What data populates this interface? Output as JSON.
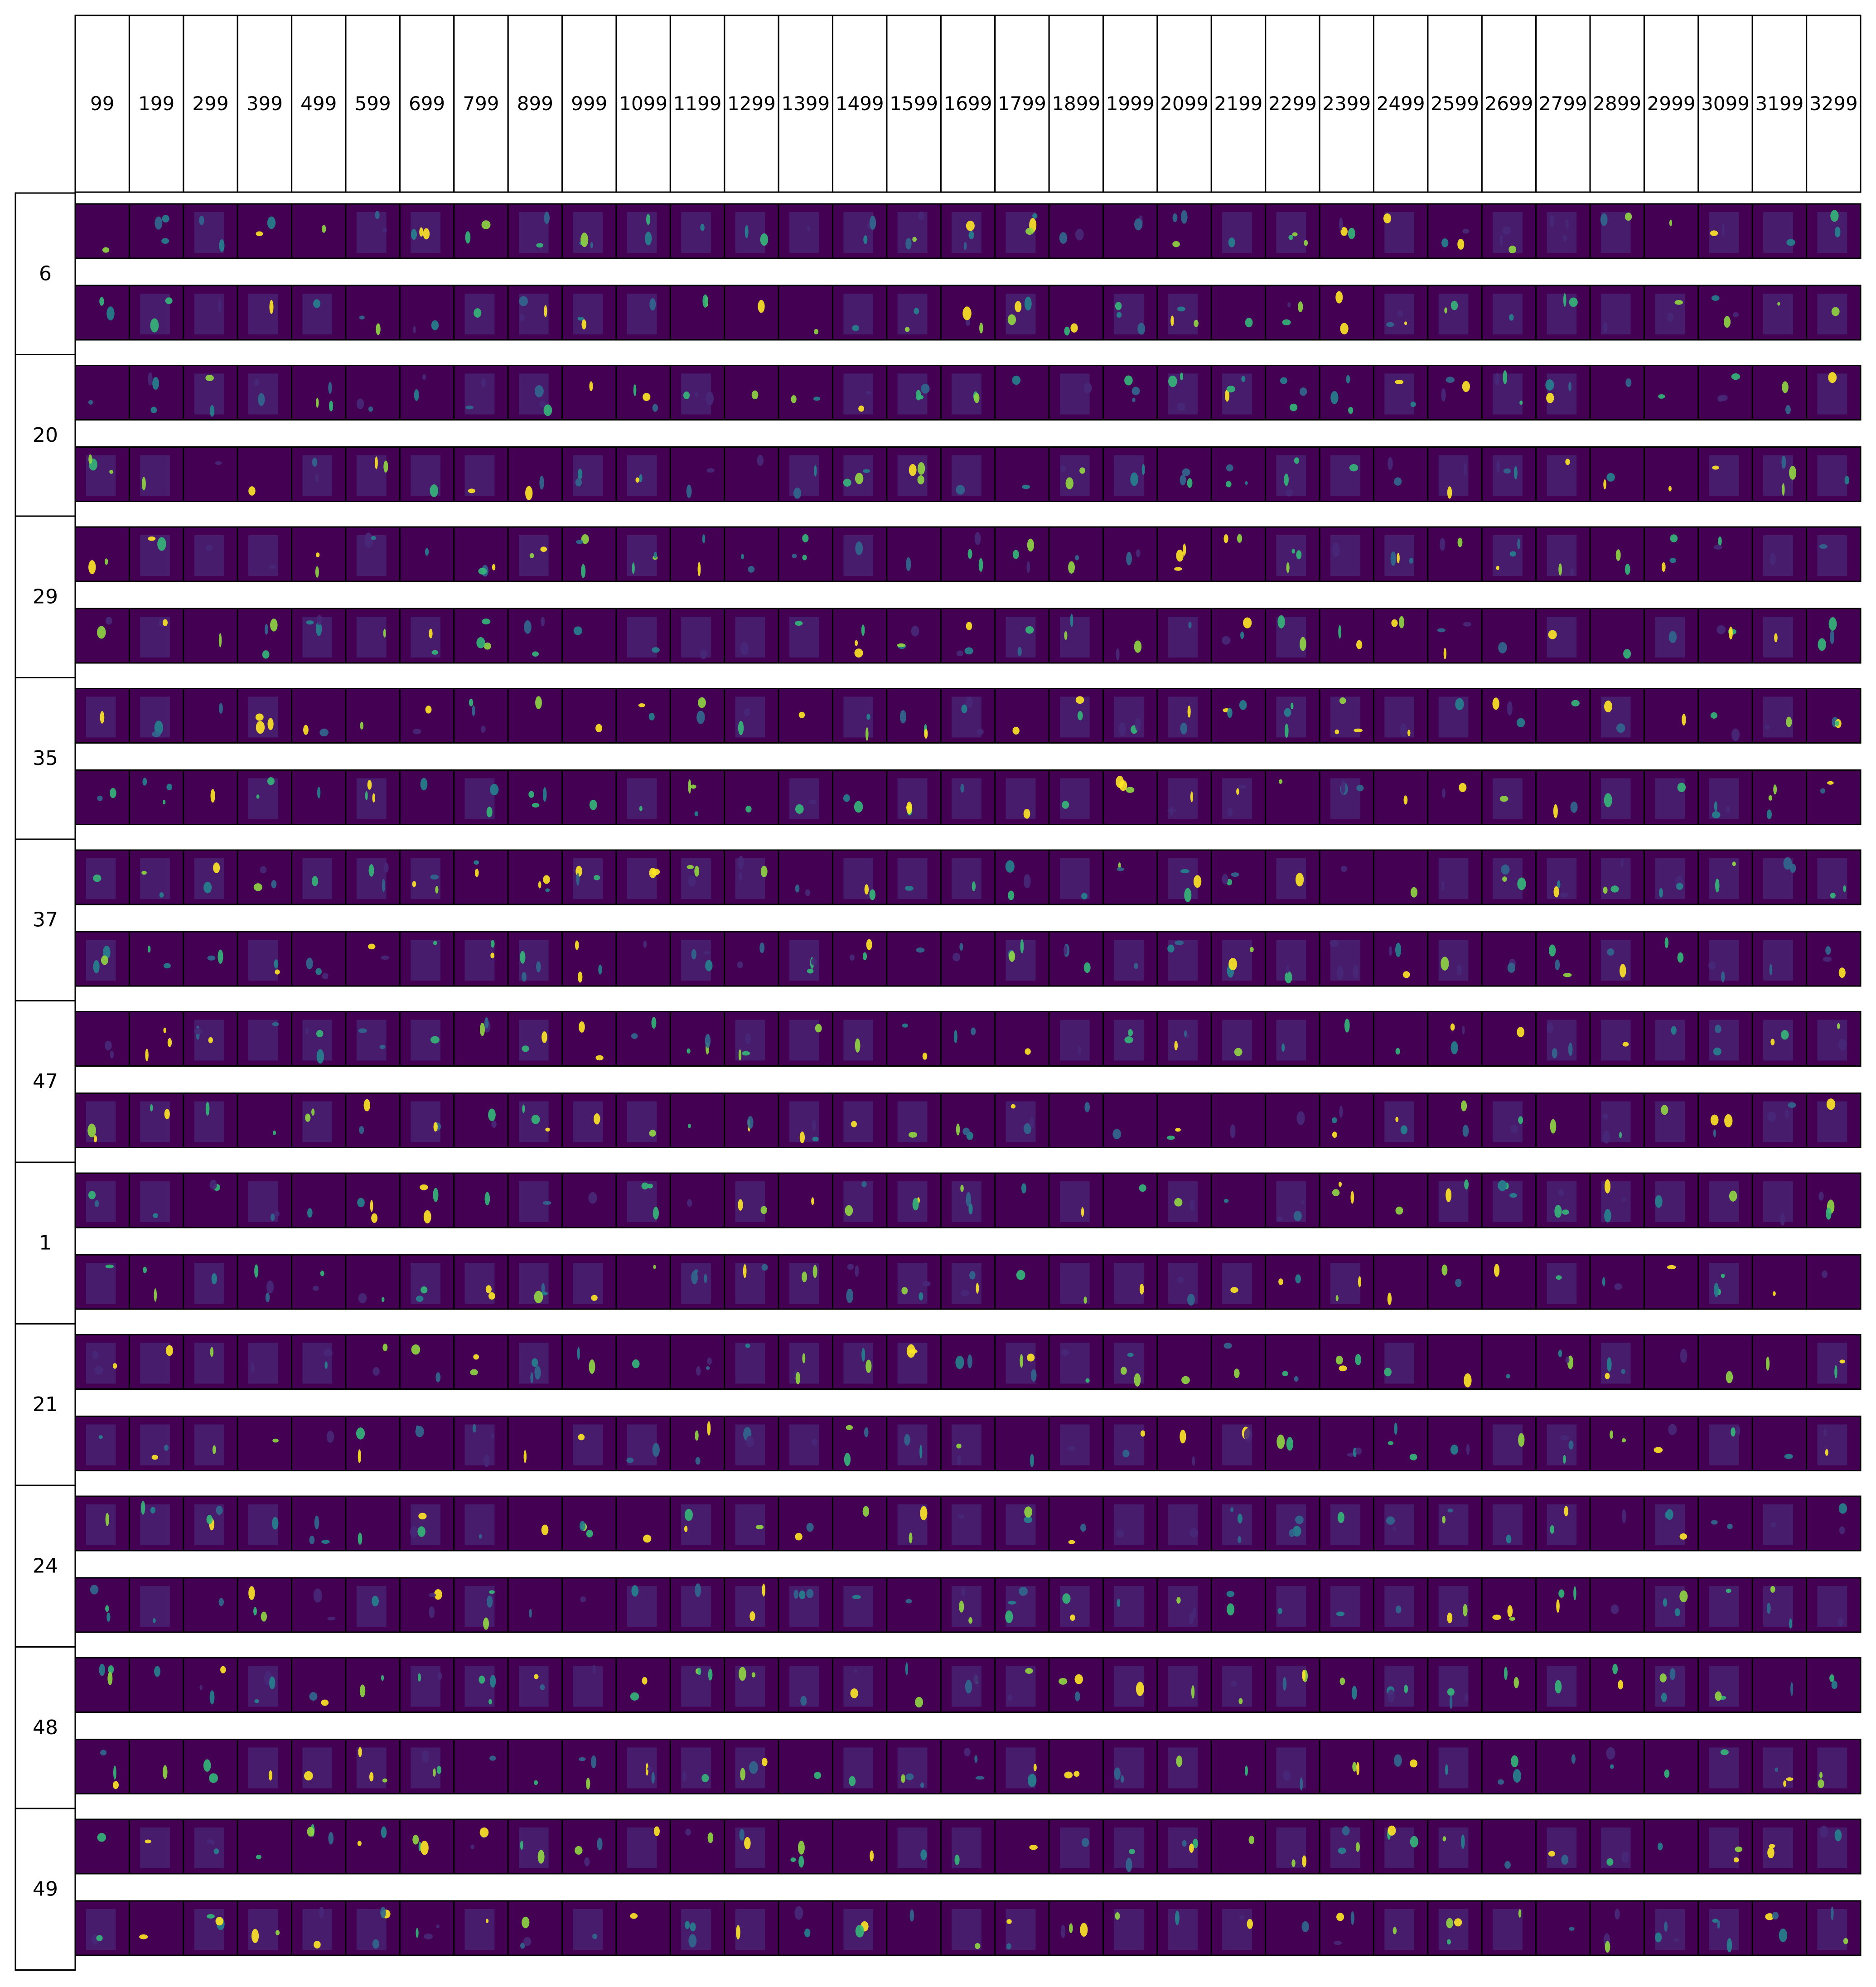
{
  "columns": [
    "99",
    "199",
    "299",
    "399",
    "499",
    "599",
    "699",
    "799",
    "899",
    "999",
    "1099",
    "1199",
    "1299",
    "1399",
    "1499",
    "1599",
    "1699",
    "1799",
    "1899",
    "1999",
    "2099",
    "2199",
    "2299",
    "2399",
    "2499",
    "2599",
    "2699",
    "2799",
    "2899",
    "2999",
    "3099",
    "3199",
    "3299"
  ],
  "rows": [
    "6",
    "20",
    "29",
    "35",
    "37",
    "47",
    "1",
    "21",
    "24",
    "48",
    "49"
  ],
  "colors": {
    "background": "#440154",
    "low": "#482878",
    "mid": "#31688e",
    "teal": "#26828e",
    "green": "#35b779",
    "bright": "#90d743",
    "peak": "#fde725",
    "frame": "#000000"
  }
}
